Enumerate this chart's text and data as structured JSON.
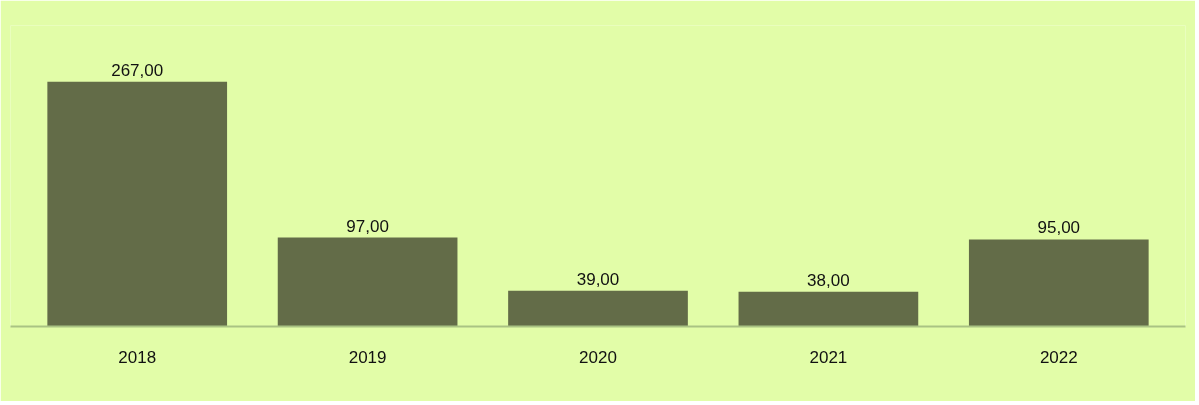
{
  "chart_data": {
    "type": "bar",
    "categories": [
      "2018",
      "2019",
      "2020",
      "2021",
      "2022"
    ],
    "values": [
      267,
      97,
      39,
      38,
      95
    ],
    "color": "#636c48",
    "value_labels": [
      "267,00",
      "97,00",
      "39,00",
      "38,00",
      "95,00"
    ],
    "grid": false
  }
}
